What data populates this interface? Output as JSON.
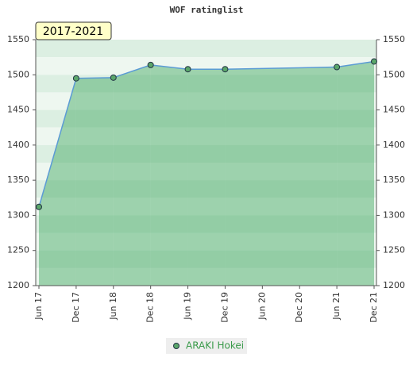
{
  "chart_data": {
    "type": "area",
    "title": "WOF ratinglist",
    "period_label": "2017-2021",
    "categories": [
      "Jun 17",
      "Dec 17",
      "Jun 18",
      "Dec 18",
      "Jun 19",
      "Dec 19",
      "Jun 20",
      "Dec 20",
      "Jun 21",
      "Dec 21"
    ],
    "series": [
      {
        "name": "ARAKI Hokei",
        "color": "#5aa66a",
        "values": [
          1312,
          1495,
          1496,
          1514,
          1508,
          1508,
          null,
          null,
          1511,
          1519
        ]
      }
    ],
    "ylim": [
      1200,
      1550
    ],
    "yticks": [
      1200,
      1250,
      1300,
      1350,
      1400,
      1450,
      1500,
      1550
    ],
    "grid": true
  }
}
